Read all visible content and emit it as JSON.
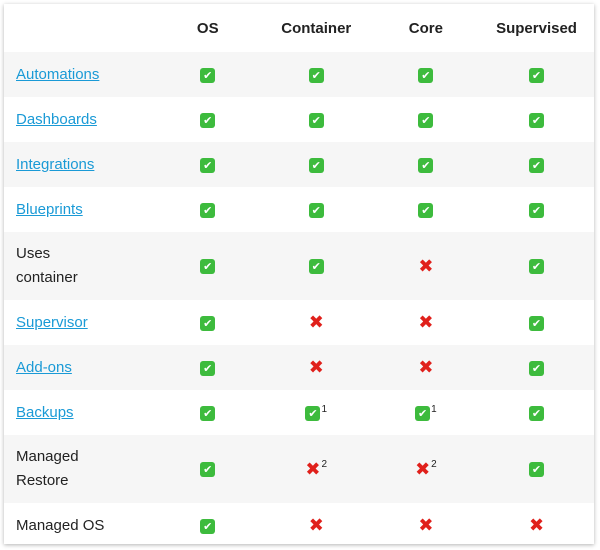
{
  "table": {
    "columns": [
      "OS",
      "Container",
      "Core",
      "Supervised"
    ],
    "rows": [
      {
        "label": "Automations",
        "link": true,
        "cells": [
          {
            "symbol": "✔"
          },
          {
            "symbol": "✔"
          },
          {
            "symbol": "✔"
          },
          {
            "symbol": "✔"
          }
        ]
      },
      {
        "label": "Dashboards",
        "link": true,
        "cells": [
          {
            "symbol": "✔"
          },
          {
            "symbol": "✔"
          },
          {
            "symbol": "✔"
          },
          {
            "symbol": "✔"
          }
        ]
      },
      {
        "label": "Integrations",
        "link": true,
        "cells": [
          {
            "symbol": "✔"
          },
          {
            "symbol": "✔"
          },
          {
            "symbol": "✔"
          },
          {
            "symbol": "✔"
          }
        ]
      },
      {
        "label": "Blueprints",
        "link": true,
        "cells": [
          {
            "symbol": "✔"
          },
          {
            "symbol": "✔"
          },
          {
            "symbol": "✔"
          },
          {
            "symbol": "✔"
          }
        ]
      },
      {
        "label": "Uses container",
        "link": false,
        "cells": [
          {
            "symbol": "✔"
          },
          {
            "symbol": "✔"
          },
          {
            "symbol": "✖"
          },
          {
            "symbol": "✔"
          }
        ]
      },
      {
        "label": "Supervisor",
        "link": true,
        "cells": [
          {
            "symbol": "✔"
          },
          {
            "symbol": "✖"
          },
          {
            "symbol": "✖"
          },
          {
            "symbol": "✔"
          }
        ]
      },
      {
        "label": "Add-ons",
        "link": true,
        "cells": [
          {
            "symbol": "✔"
          },
          {
            "symbol": "✖"
          },
          {
            "symbol": "✖"
          },
          {
            "symbol": "✔"
          }
        ]
      },
      {
        "label": "Backups",
        "link": true,
        "cells": [
          {
            "symbol": "✔"
          },
          {
            "symbol": "✔",
            "note": "1"
          },
          {
            "symbol": "✔",
            "note": "1"
          },
          {
            "symbol": "✔"
          }
        ]
      },
      {
        "label": "Managed Restore",
        "link": false,
        "cells": [
          {
            "symbol": "✔"
          },
          {
            "symbol": "✖",
            "note": "2"
          },
          {
            "symbol": "✖",
            "note": "2"
          },
          {
            "symbol": "✔"
          }
        ]
      },
      {
        "label": "Managed OS",
        "link": false,
        "cells": [
          {
            "symbol": "✔"
          },
          {
            "symbol": "✖"
          },
          {
            "symbol": "✖"
          },
          {
            "symbol": "✖"
          }
        ]
      }
    ]
  }
}
